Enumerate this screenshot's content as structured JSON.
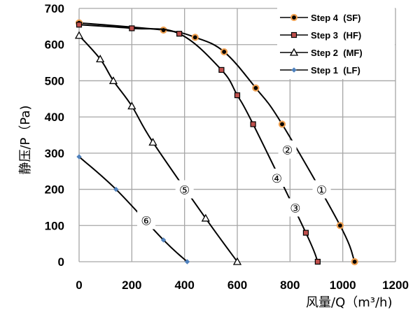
{
  "chart_data": {
    "type": "line",
    "title": "",
    "xlabel": "风量/Q（m³/h)",
    "ylabel": "静压/P（Pa)",
    "xlim": [
      0,
      1200
    ],
    "ylim": [
      0,
      700
    ],
    "xticks": [
      0,
      200,
      400,
      600,
      800,
      1000,
      1200
    ],
    "yticks": [
      0,
      100,
      200,
      300,
      400,
      500,
      600,
      700
    ],
    "grid": true,
    "legend_position": "top-right",
    "series": [
      {
        "name": "Step 4  (SF)",
        "marker": "circle",
        "marker_color": "#000000",
        "marker_edge": "#f0a050",
        "x": [
          0,
          320,
          440,
          550,
          670,
          770,
          990,
          1045
        ],
        "y": [
          660,
          640,
          620,
          580,
          480,
          380,
          100,
          0
        ]
      },
      {
        "name": "Step 3  (HF)",
        "marker": "square",
        "marker_color": "#c0504d",
        "marker_edge": "#000000",
        "x": [
          0,
          200,
          380,
          540,
          600,
          660,
          860,
          905
        ],
        "y": [
          655,
          645,
          630,
          530,
          460,
          380,
          80,
          0
        ]
      },
      {
        "name": "Step 2  (MF)",
        "marker": "triangle",
        "marker_color": "#ffffff",
        "marker_edge": "#000000",
        "x": [
          0,
          80,
          130,
          200,
          280,
          480,
          600
        ],
        "y": [
          625,
          560,
          500,
          430,
          330,
          120,
          0
        ]
      },
      {
        "name": "Step 1  (LF)",
        "marker": "diamond",
        "marker_color": "#4f81bd",
        "marker_edge": "#4f81bd",
        "x": [
          0,
          140,
          320,
          410
        ],
        "y": [
          290,
          200,
          60,
          0
        ]
      }
    ],
    "annotations": [
      {
        "text": "②",
        "x": 790,
        "y": 310
      },
      {
        "text": "④",
        "x": 750,
        "y": 232
      },
      {
        "text": "③",
        "x": 820,
        "y": 150
      },
      {
        "text": "①",
        "x": 920,
        "y": 200
      },
      {
        "text": "⑤",
        "x": 400,
        "y": 200
      },
      {
        "text": "⑥",
        "x": 255,
        "y": 115
      }
    ]
  }
}
